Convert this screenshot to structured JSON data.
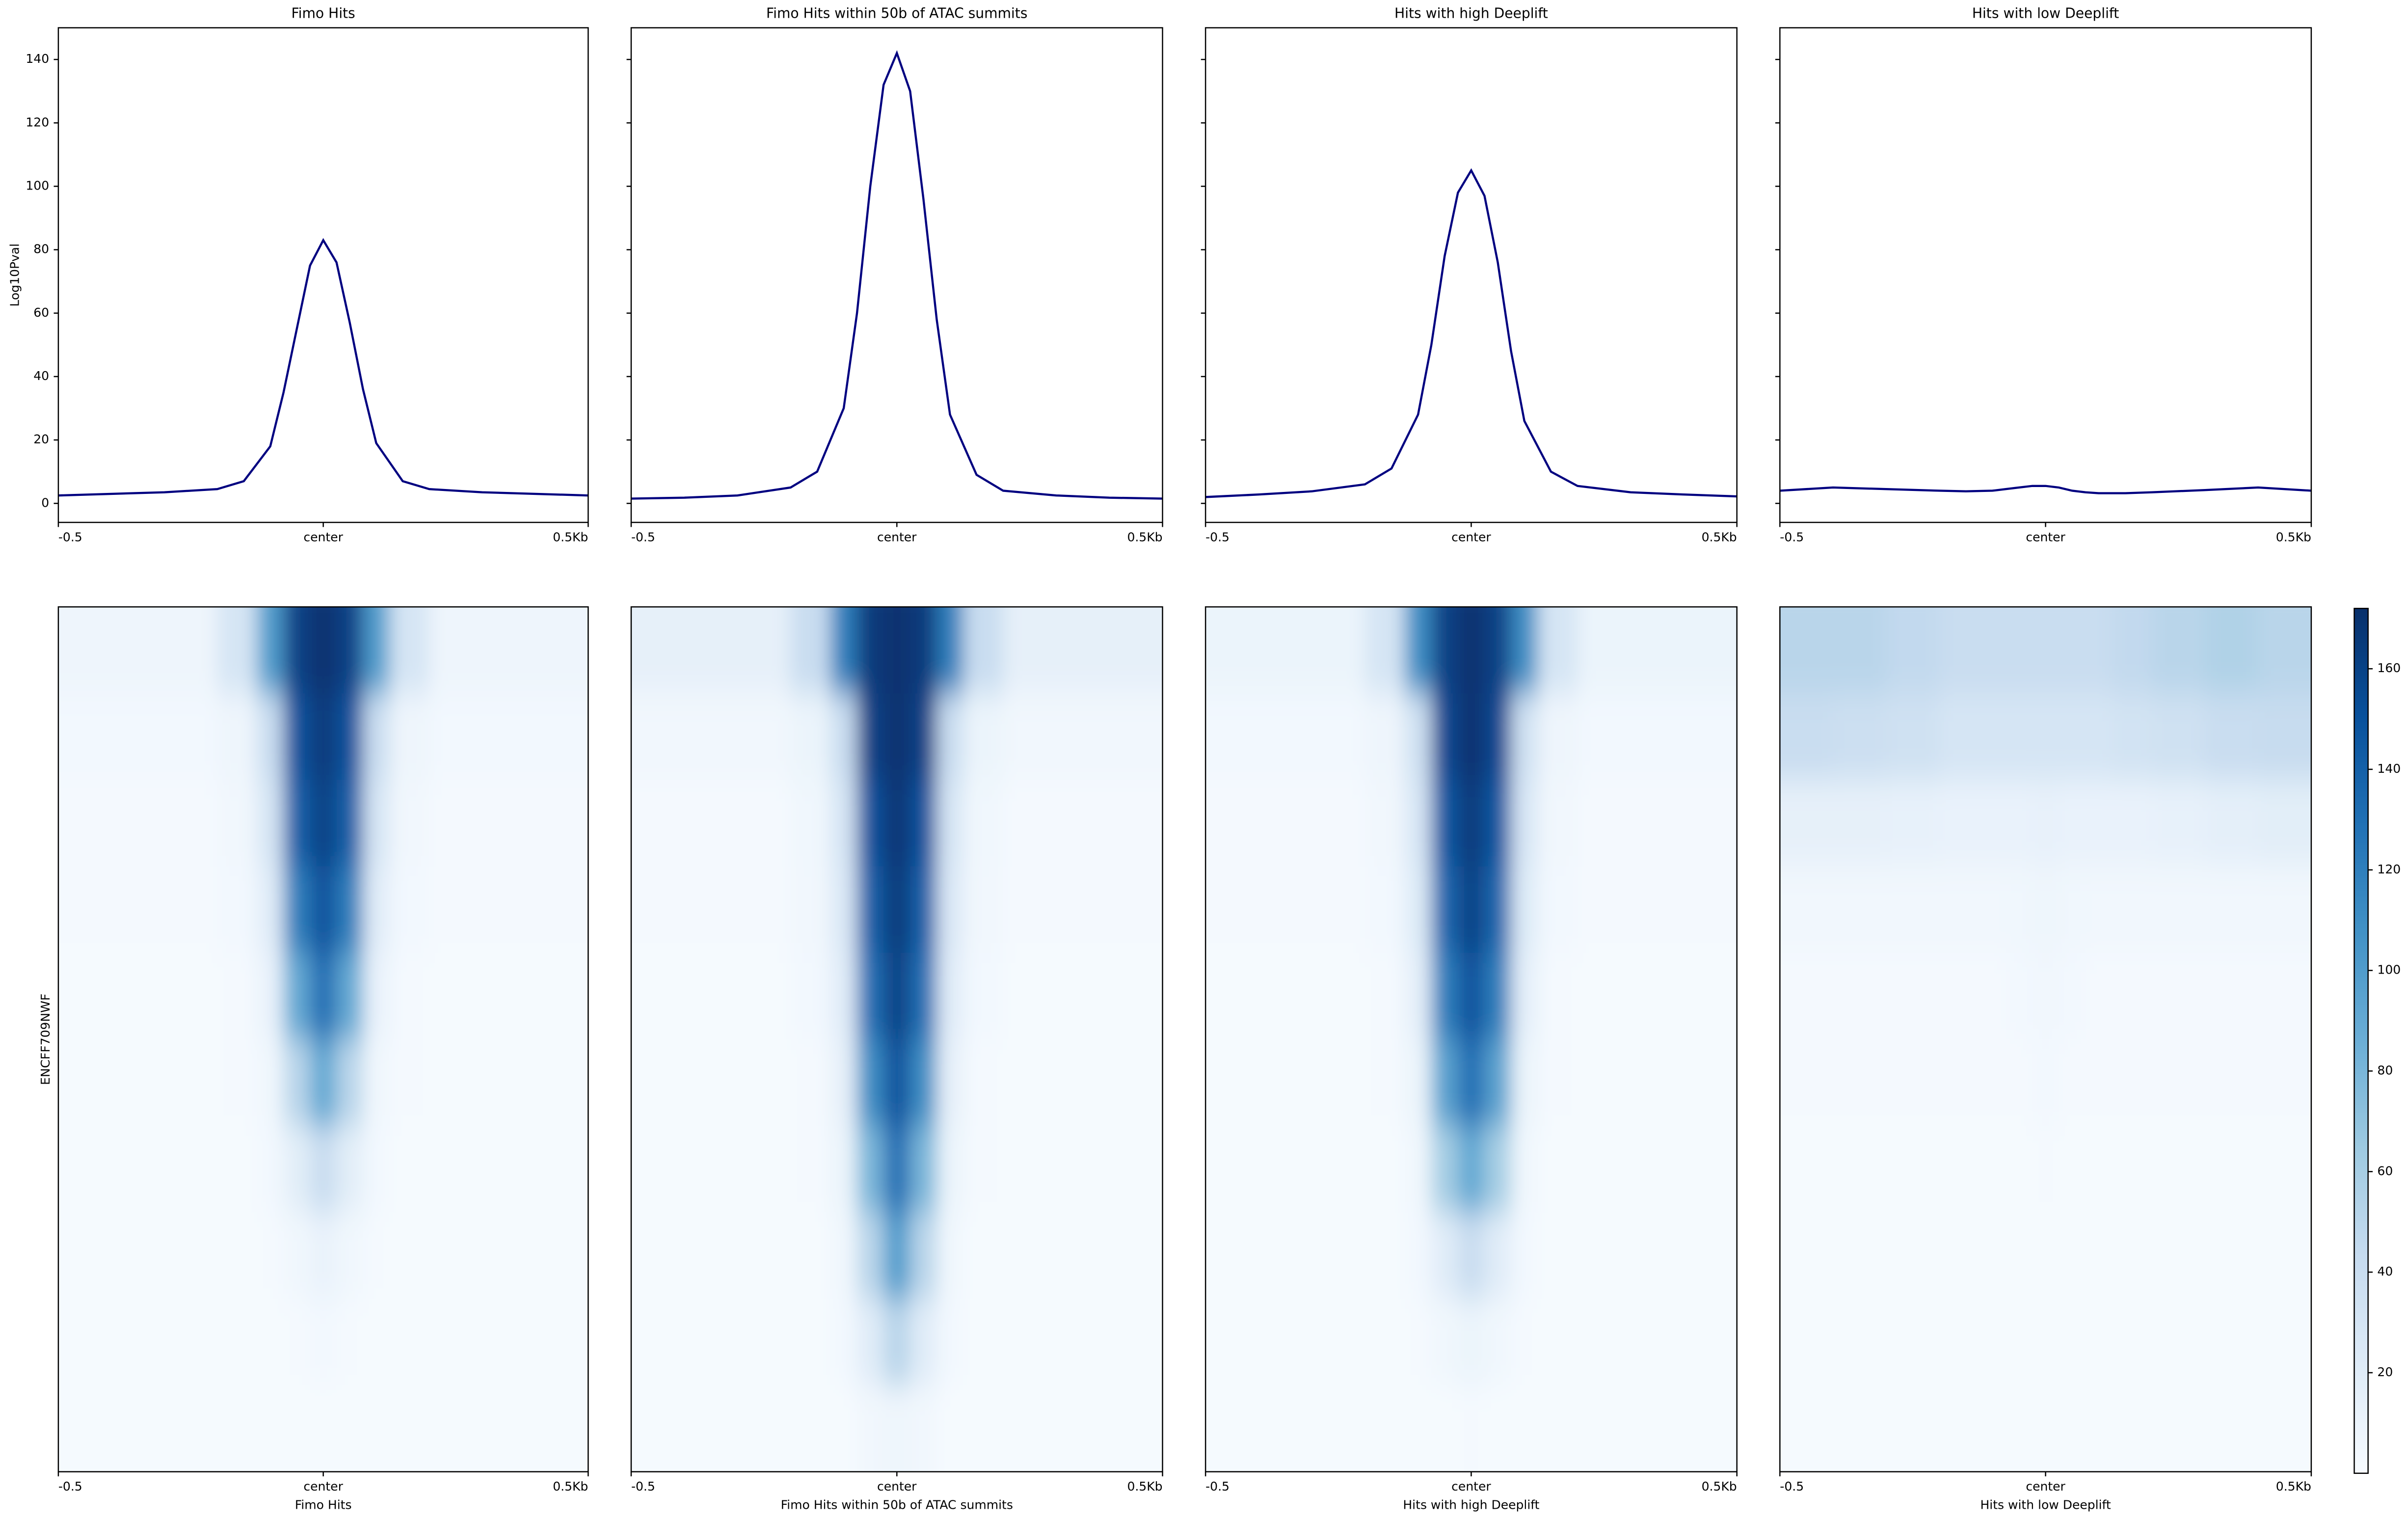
{
  "chart_data": [
    {
      "type": "line",
      "title": "Fimo Hits",
      "ylabel": "Log10Pval",
      "color": "#000080",
      "x": [
        -0.5,
        -0.4,
        -0.3,
        -0.2,
        -0.15,
        -0.1,
        -0.075,
        -0.05,
        -0.025,
        0,
        0.025,
        0.05,
        0.075,
        0.1,
        0.15,
        0.2,
        0.3,
        0.4,
        0.5
      ],
      "values": [
        2.5,
        3,
        3.5,
        4.5,
        7,
        18,
        35,
        55,
        75,
        83,
        76,
        57,
        36,
        19,
        7,
        4.5,
        3.5,
        3,
        2.5
      ],
      "xlim": [
        -0.5,
        0.5
      ],
      "xticks": [
        -0.5,
        {
          "value": 0,
          "label": "center"
        },
        {
          "value": 0.5,
          "label": "0.5Kb"
        }
      ],
      "ylim": [
        -6,
        150
      ],
      "yticks": [
        0,
        20,
        40,
        60,
        80,
        100,
        120,
        140
      ],
      "ytick_labels": true
    },
    {
      "type": "line",
      "title": "Fimo Hits within 50b of ATAC summits",
      "color": "#000080",
      "x": [
        -0.5,
        -0.4,
        -0.3,
        -0.2,
        -0.15,
        -0.1,
        -0.075,
        -0.05,
        -0.025,
        0,
        0.025,
        0.05,
        0.075,
        0.1,
        0.15,
        0.2,
        0.3,
        0.4,
        0.5
      ],
      "values": [
        1.5,
        1.8,
        2.5,
        5,
        10,
        30,
        60,
        100,
        132,
        142,
        130,
        96,
        58,
        28,
        9,
        4,
        2.5,
        1.8,
        1.5
      ],
      "xlim": [
        -0.5,
        0.5
      ],
      "xticks": [
        -0.5,
        {
          "value": 0,
          "label": "center"
        },
        {
          "value": 0.5,
          "label": "0.5Kb"
        }
      ],
      "ylim": [
        -6,
        150
      ],
      "yticks": [
        0,
        20,
        40,
        60,
        80,
        100,
        120,
        140
      ],
      "ytick_labels": false
    },
    {
      "type": "line",
      "title": "Hits with high Deeplift",
      "color": "#000080",
      "x": [
        -0.5,
        -0.4,
        -0.3,
        -0.2,
        -0.15,
        -0.1,
        -0.075,
        -0.05,
        -0.025,
        0,
        0.025,
        0.05,
        0.075,
        0.1,
        0.15,
        0.2,
        0.3,
        0.4,
        0.5
      ],
      "values": [
        2,
        2.8,
        3.8,
        6,
        11,
        28,
        50,
        78,
        98,
        105,
        97,
        76,
        48,
        26,
        10,
        5.5,
        3.5,
        2.8,
        2.2
      ],
      "xlim": [
        -0.5,
        0.5
      ],
      "xticks": [
        -0.5,
        {
          "value": 0,
          "label": "center"
        },
        {
          "value": 0.5,
          "label": "0.5Kb"
        }
      ],
      "ylim": [
        -6,
        150
      ],
      "yticks": [
        0,
        20,
        40,
        60,
        80,
        100,
        120,
        140
      ],
      "ytick_labels": false
    },
    {
      "type": "line",
      "title": "Hits with low Deeplift",
      "color": "#000080",
      "x": [
        -0.5,
        -0.4,
        -0.3,
        -0.2,
        -0.15,
        -0.1,
        -0.075,
        -0.05,
        -0.025,
        0,
        0.025,
        0.05,
        0.075,
        0.1,
        0.15,
        0.2,
        0.3,
        0.4,
        0.5
      ],
      "values": [
        4,
        5,
        4.5,
        4,
        3.8,
        4,
        4.5,
        5,
        5.5,
        5.5,
        5,
        4,
        3.5,
        3.2,
        3.2,
        3.5,
        4.2,
        5,
        4
      ],
      "xlim": [
        -0.5,
        0.5
      ],
      "xticks": [
        -0.5,
        {
          "value": 0,
          "label": "center"
        },
        {
          "value": 0.5,
          "label": "0.5Kb"
        }
      ],
      "ylim": [
        -6,
        150
      ],
      "yticks": [
        0,
        20,
        40,
        60,
        80,
        100,
        120,
        140
      ],
      "ytick_labels": false
    },
    {
      "type": "heatmap",
      "xlabel": "Fimo Hits",
      "ylabel": "ENCFF709NWF",
      "colormap": "Blues",
      "zlim": [
        0,
        172
      ],
      "xbins": [
        -0.5,
        -0.4,
        -0.3,
        -0.2,
        -0.125,
        -0.075,
        -0.025,
        0.025,
        0.075,
        0.125,
        0.2,
        0.3,
        0.4,
        0.5
      ],
      "z": [
        [
          8,
          8,
          8,
          30,
          100,
          160,
          170,
          160,
          100,
          30,
          8,
          8,
          8
        ],
        [
          4,
          4,
          4,
          8,
          40,
          150,
          165,
          150,
          40,
          8,
          4,
          4,
          4
        ],
        [
          3,
          3,
          3,
          5,
          30,
          140,
          160,
          140,
          30,
          5,
          3,
          3,
          3
        ],
        [
          3,
          3,
          3,
          4,
          20,
          120,
          150,
          120,
          20,
          4,
          3,
          3,
          3
        ],
        [
          2,
          2,
          2,
          3,
          12,
          90,
          130,
          90,
          12,
          3,
          2,
          2,
          2
        ],
        [
          2,
          2,
          2,
          3,
          6,
          50,
          90,
          50,
          6,
          3,
          2,
          2,
          2
        ],
        [
          2,
          2,
          2,
          2,
          4,
          18,
          40,
          18,
          4,
          2,
          2,
          2,
          2
        ],
        [
          2,
          2,
          2,
          2,
          3,
          6,
          12,
          6,
          3,
          2,
          2,
          2,
          2
        ],
        [
          2,
          2,
          2,
          2,
          2,
          3,
          4,
          3,
          2,
          2,
          2,
          2,
          2
        ],
        [
          2,
          2,
          2,
          2,
          2,
          2,
          2,
          2,
          2,
          2,
          2,
          2,
          2
        ]
      ],
      "xlim": [
        -0.5,
        0.5
      ],
      "xticks": [
        -0.5,
        {
          "value": 0,
          "label": "center"
        },
        {
          "value": 0.5,
          "label": "0.5Kb"
        }
      ]
    },
    {
      "type": "heatmap",
      "xlabel": "Fimo Hits within 50b of ATAC summits",
      "colormap": "Blues",
      "zlim": [
        0,
        172
      ],
      "xbins": [
        -0.5,
        -0.4,
        -0.3,
        -0.2,
        -0.125,
        -0.075,
        -0.025,
        0.025,
        0.075,
        0.125,
        0.2,
        0.3,
        0.4,
        0.5
      ],
      "z": [
        [
          15,
          15,
          15,
          40,
          120,
          165,
          170,
          165,
          120,
          40,
          15,
          15,
          15
        ],
        [
          5,
          5,
          5,
          10,
          40,
          160,
          170,
          160,
          40,
          10,
          5,
          5,
          5
        ],
        [
          3,
          3,
          3,
          6,
          30,
          150,
          168,
          150,
          30,
          6,
          3,
          3,
          3
        ],
        [
          3,
          3,
          3,
          5,
          25,
          140,
          165,
          140,
          25,
          5,
          3,
          3,
          3
        ],
        [
          2,
          2,
          2,
          4,
          20,
          130,
          160,
          130,
          20,
          4,
          2,
          2,
          2
        ],
        [
          2,
          2,
          2,
          3,
          15,
          110,
          150,
          110,
          15,
          3,
          2,
          2,
          2
        ],
        [
          2,
          2,
          2,
          3,
          10,
          80,
          130,
          80,
          10,
          3,
          2,
          2,
          2
        ],
        [
          2,
          2,
          2,
          2,
          6,
          50,
          100,
          50,
          6,
          2,
          2,
          2,
          2
        ],
        [
          2,
          2,
          2,
          2,
          4,
          20,
          50,
          20,
          4,
          2,
          2,
          2,
          2
        ],
        [
          2,
          2,
          2,
          2,
          2,
          5,
          8,
          5,
          2,
          2,
          2,
          2,
          2
        ]
      ],
      "xlim": [
        -0.5,
        0.5
      ],
      "xticks": [
        -0.5,
        {
          "value": 0,
          "label": "center"
        },
        {
          "value": 0.5,
          "label": "0.5Kb"
        }
      ]
    },
    {
      "type": "heatmap",
      "xlabel": "Hits with high Deeplift",
      "colormap": "Blues",
      "zlim": [
        0,
        172
      ],
      "xbins": [
        -0.5,
        -0.4,
        -0.3,
        -0.2,
        -0.125,
        -0.075,
        -0.025,
        0.025,
        0.075,
        0.125,
        0.2,
        0.3,
        0.4,
        0.5
      ],
      "z": [
        [
          10,
          10,
          10,
          30,
          110,
          160,
          170,
          160,
          110,
          30,
          10,
          10,
          10
        ],
        [
          4,
          4,
          4,
          8,
          35,
          155,
          170,
          155,
          35,
          8,
          4,
          4,
          4
        ],
        [
          3,
          3,
          3,
          5,
          28,
          145,
          165,
          145,
          28,
          5,
          3,
          3,
          3
        ],
        [
          3,
          3,
          3,
          4,
          22,
          135,
          160,
          135,
          22,
          4,
          3,
          3,
          3
        ],
        [
          2,
          2,
          2,
          3,
          16,
          120,
          150,
          120,
          16,
          3,
          2,
          2,
          2
        ],
        [
          2,
          2,
          2,
          3,
          10,
          95,
          130,
          95,
          10,
          3,
          2,
          2,
          2
        ],
        [
          2,
          2,
          2,
          2,
          6,
          60,
          90,
          60,
          6,
          2,
          2,
          2,
          2
        ],
        [
          2,
          2,
          2,
          2,
          4,
          20,
          40,
          20,
          4,
          2,
          2,
          2,
          2
        ],
        [
          2,
          2,
          2,
          2,
          3,
          6,
          10,
          6,
          3,
          2,
          2,
          2,
          2
        ],
        [
          2,
          2,
          2,
          2,
          2,
          2,
          3,
          2,
          2,
          2,
          2,
          2,
          2
        ]
      ],
      "xlim": [
        -0.5,
        0.5
      ],
      "xticks": [
        -0.5,
        {
          "value": 0,
          "label": "center"
        },
        {
          "value": 0.5,
          "label": "0.5Kb"
        }
      ]
    },
    {
      "type": "heatmap",
      "xlabel": "Hits with low Deeplift",
      "colormap": "Blues",
      "zlim": [
        0,
        172
      ],
      "zticks": [
        20,
        40,
        60,
        80,
        100,
        120,
        140,
        160
      ],
      "xbins": [
        -0.5,
        -0.4,
        -0.3,
        -0.2,
        -0.125,
        -0.075,
        -0.025,
        0.025,
        0.075,
        0.125,
        0.2,
        0.3,
        0.4,
        0.5
      ],
      "z": [
        [
          50,
          50,
          45,
          40,
          40,
          40,
          40,
          40,
          40,
          45,
          50,
          55,
          50
        ],
        [
          40,
          38,
          35,
          30,
          30,
          30,
          30,
          30,
          30,
          32,
          35,
          40,
          42
        ],
        [
          15,
          15,
          14,
          12,
          12,
          12,
          14,
          12,
          12,
          12,
          14,
          16,
          18
        ],
        [
          5,
          5,
          5,
          5,
          5,
          6,
          8,
          6,
          5,
          5,
          5,
          5,
          5
        ],
        [
          3,
          3,
          3,
          3,
          3,
          4,
          5,
          4,
          3,
          3,
          3,
          3,
          3
        ],
        [
          3,
          3,
          3,
          3,
          3,
          3,
          4,
          3,
          3,
          3,
          3,
          3,
          3
        ],
        [
          2,
          2,
          2,
          2,
          2,
          2,
          3,
          2,
          2,
          2,
          2,
          2,
          2
        ],
        [
          2,
          2,
          2,
          2,
          2,
          2,
          2,
          2,
          2,
          2,
          2,
          2,
          2
        ],
        [
          2,
          2,
          2,
          2,
          2,
          2,
          2,
          2,
          2,
          2,
          2,
          2,
          2
        ],
        [
          2,
          2,
          2,
          2,
          2,
          2,
          2,
          2,
          2,
          2,
          2,
          2,
          2
        ]
      ],
      "xlim": [
        -0.5,
        0.5
      ],
      "xticks": [
        -0.5,
        {
          "value": 0,
          "label": "center"
        },
        {
          "value": 0.5,
          "label": "0.5Kb"
        }
      ]
    }
  ]
}
